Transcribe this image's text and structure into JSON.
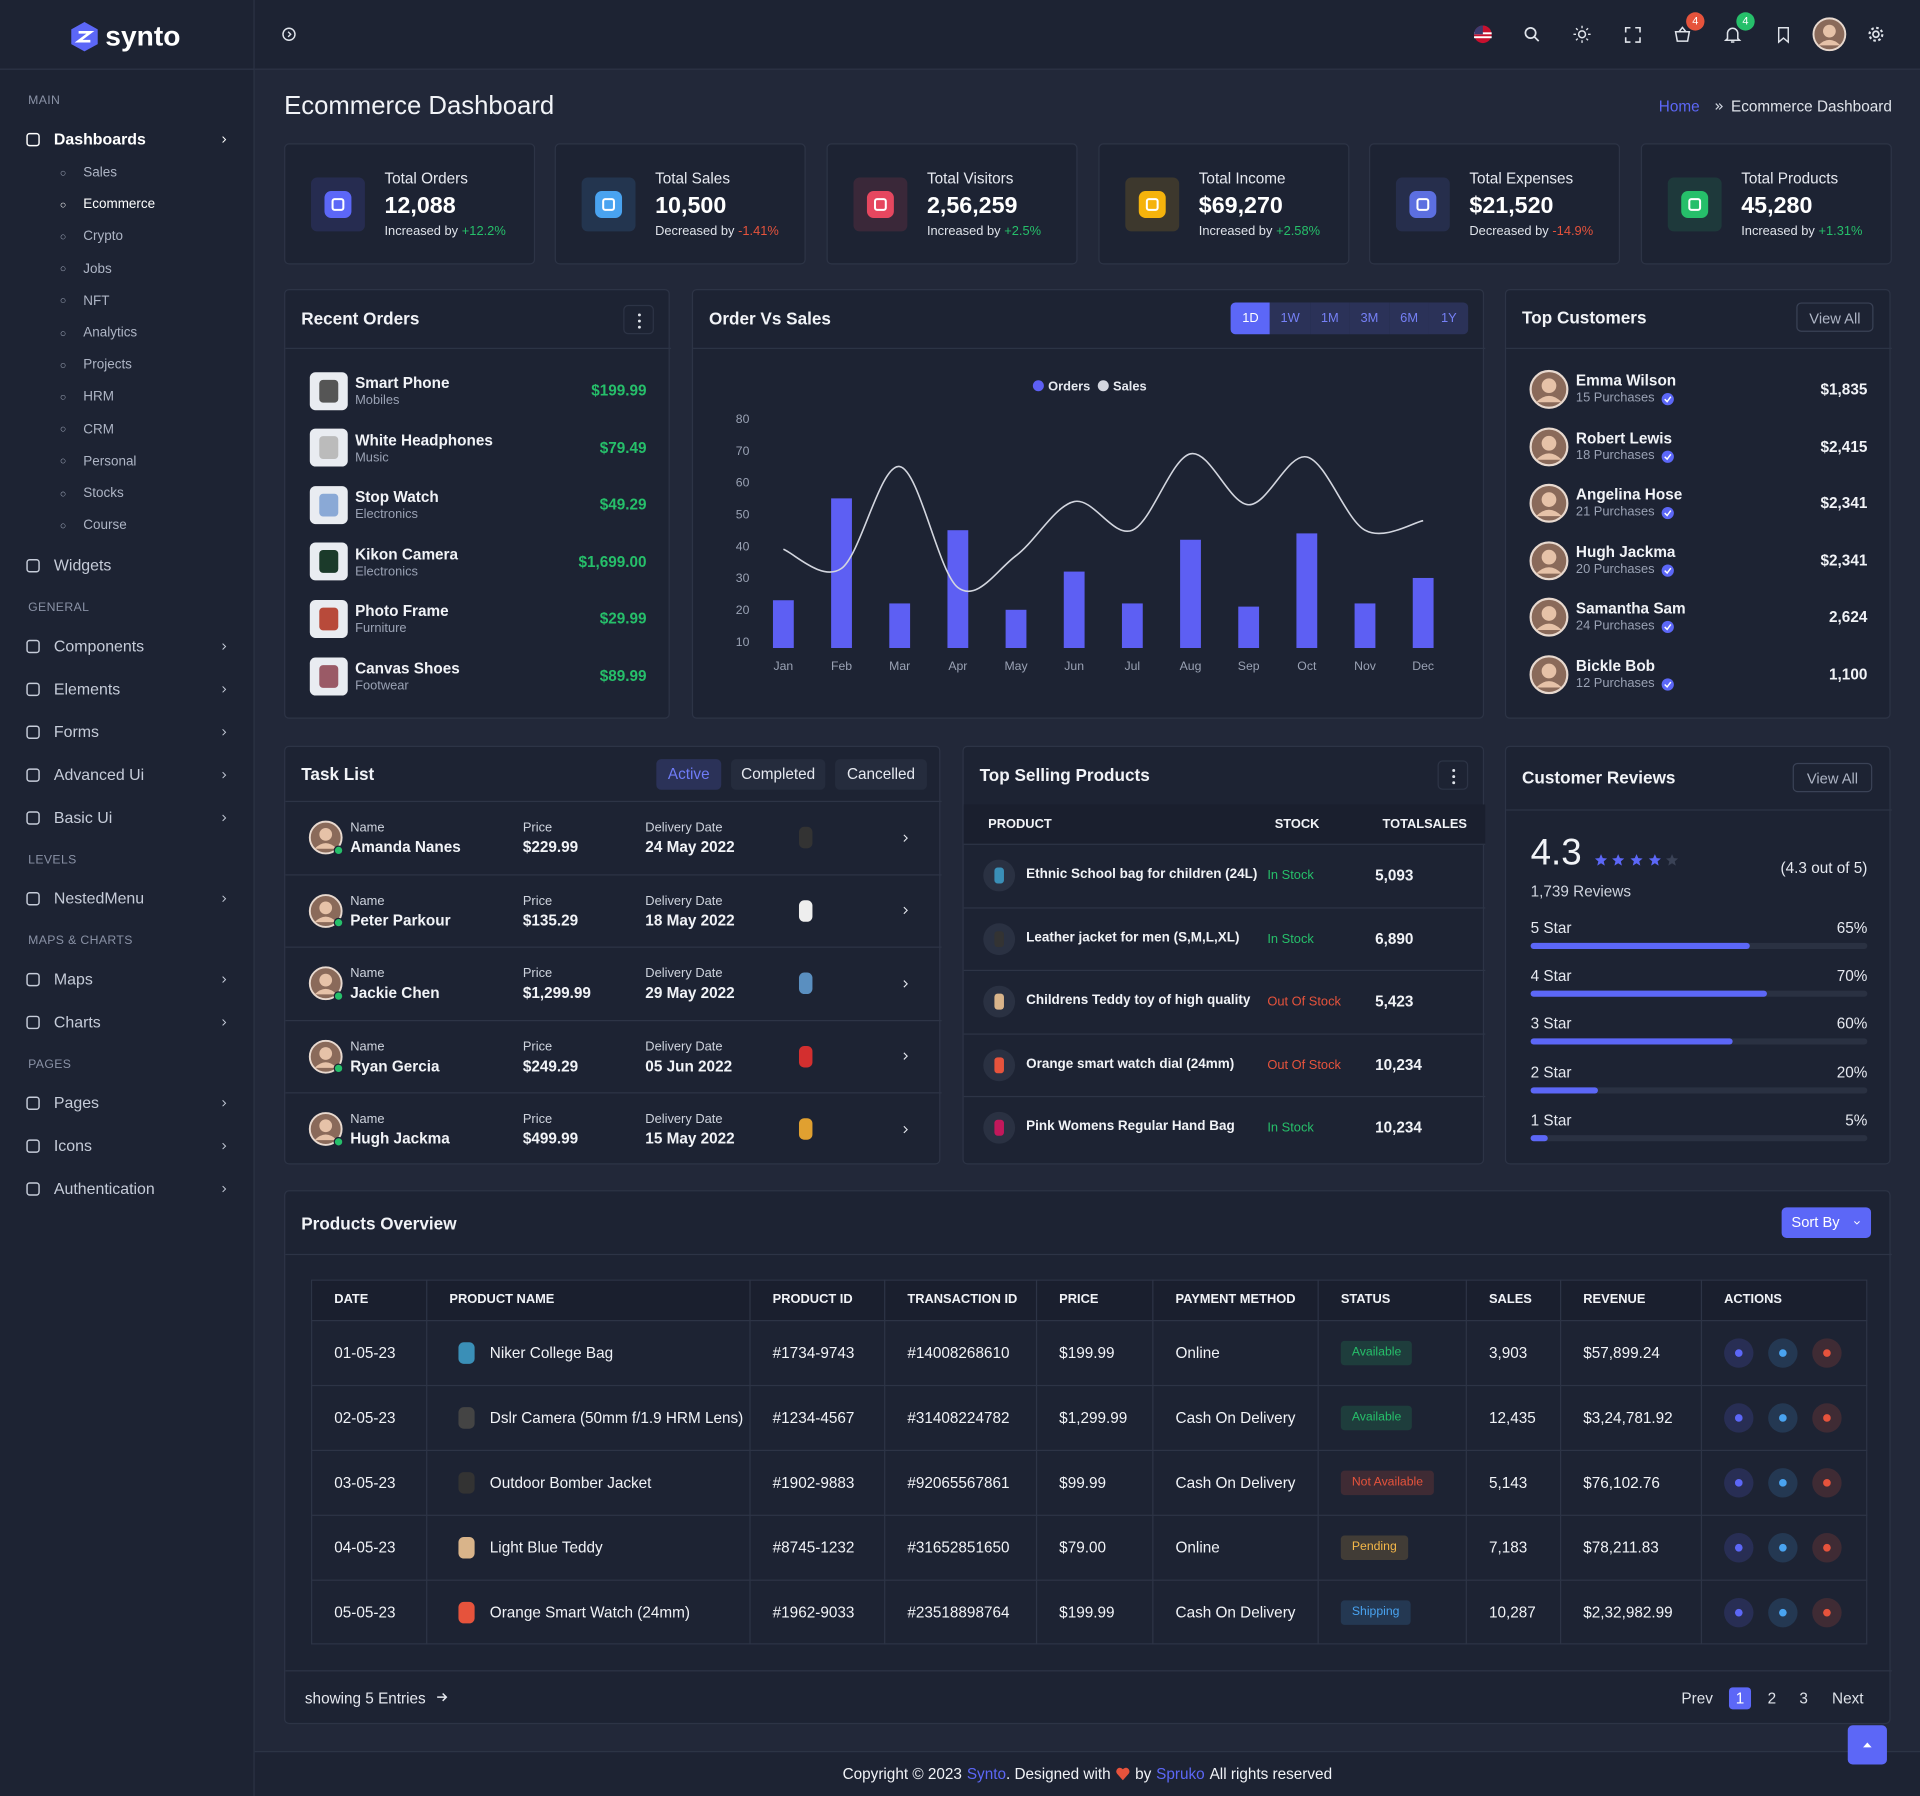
{
  "brand": "synto",
  "header": {
    "cart_count": 4,
    "notification_count": 4
  },
  "sidebar": {
    "sections": [
      {
        "title": "MAIN",
        "items": [
          {
            "label": "Dashboards",
            "children": [
              "Sales",
              "Ecommerce",
              "Crypto",
              "Jobs",
              "NFT",
              "Analytics",
              "Projects",
              "HRM",
              "CRM",
              "Personal",
              "Stocks",
              "Course"
            ]
          },
          {
            "label": "Widgets"
          }
        ]
      },
      {
        "title": "GENERAL",
        "items": [
          {
            "label": "Components"
          },
          {
            "label": "Elements"
          },
          {
            "label": "Forms"
          },
          {
            "label": "Advanced Ui"
          },
          {
            "label": "Basic Ui"
          }
        ]
      },
      {
        "title": "LEVELS",
        "items": [
          {
            "label": "NestedMenu"
          }
        ]
      },
      {
        "title": "MAPS & CHARTS",
        "items": [
          {
            "label": "Maps"
          },
          {
            "label": "Charts"
          }
        ]
      },
      {
        "title": "PAGES",
        "items": [
          {
            "label": "Pages"
          },
          {
            "label": "Icons"
          },
          {
            "label": "Authentication"
          }
        ]
      }
    ]
  },
  "page": {
    "title": "Ecommerce Dashboard",
    "breadcrumb": [
      "Home",
      "Ecommerce Dashboard"
    ]
  },
  "stats": [
    {
      "label": "Total Orders",
      "value": "12,088",
      "note": "Increased by",
      "change": "+12.2%",
      "color": "#26bf6a",
      "icon_color": "#5c67f7"
    },
    {
      "label": "Total Sales",
      "value": "10,500",
      "note": "Decreased by",
      "change": "-1.41%",
      "color": "#e6533c",
      "icon_color": "#49a3f0"
    },
    {
      "label": "Total Visitors",
      "value": "2,56,259",
      "note": "Increased by",
      "change": "+2.5%",
      "color": "#26bf6a",
      "icon_color": "#e6475f"
    },
    {
      "label": "Total Income",
      "value": "$69,270",
      "note": "Increased by",
      "change": "+2.58%",
      "color": "#26bf6a",
      "icon_color": "#f5b30c"
    },
    {
      "label": "Total Expenses",
      "value": "$21,520",
      "note": "Decreased by",
      "change": "-14.9%",
      "color": "#e6533c",
      "icon_color": "#5c6fe0"
    },
    {
      "label": "Total Products",
      "value": "45,280",
      "note": "Increased by",
      "change": "+1.31%",
      "color": "#26bf6a",
      "icon_color": "#26bf6a"
    }
  ],
  "recent_orders": {
    "title": "Recent Orders",
    "items": [
      {
        "name": "Smart Phone",
        "category": "Mobiles",
        "price": "$199.99"
      },
      {
        "name": "White Headphones",
        "category": "Music",
        "price": "$79.49"
      },
      {
        "name": "Stop Watch",
        "category": "Electronics",
        "price": "$49.29"
      },
      {
        "name": "Kikon Camera",
        "category": "Electronics",
        "price": "$1,699.00"
      },
      {
        "name": "Photo Frame",
        "category": "Furniture",
        "price": "$29.99"
      },
      {
        "name": "Canvas Shoes",
        "category": "Footwear",
        "price": "$89.99"
      }
    ]
  },
  "chart_data": {
    "type": "bar",
    "title": "Order Vs Sales",
    "ranges": [
      "1D",
      "1W",
      "1M",
      "3M",
      "6M",
      "1Y"
    ],
    "categories": [
      "Jan",
      "Feb",
      "Mar",
      "Apr",
      "May",
      "Jun",
      "Jul",
      "Aug",
      "Sep",
      "Oct",
      "Nov",
      "Dec"
    ],
    "series": [
      {
        "name": "Orders",
        "color": "#5d5ff3",
        "values": [
          23,
          55,
          22,
          45,
          20,
          32,
          22,
          42,
          21,
          44,
          22,
          30
        ]
      },
      {
        "name": "Sales",
        "type": "line",
        "color": "#d3d6df",
        "values": [
          39,
          33,
          65,
          27,
          37,
          54,
          45,
          69,
          53,
          68,
          45,
          48
        ]
      }
    ],
    "ylim": [
      8,
      80
    ],
    "yticks": [
      10,
      20,
      30,
      40,
      50,
      60,
      70,
      80
    ],
    "grid": false
  },
  "top_customers": {
    "title": "Top Customers",
    "action": "View All",
    "items": [
      {
        "name": "Emma Wilson",
        "purchases": "15 Purchases",
        "amount": "$1,835"
      },
      {
        "name": "Robert Lewis",
        "purchases": "18 Purchases",
        "amount": "$2,415"
      },
      {
        "name": "Angelina Hose",
        "purchases": "21 Purchases",
        "amount": "$2,341"
      },
      {
        "name": "Hugh Jackma",
        "purchases": "20 Purchases",
        "amount": "$2,341"
      },
      {
        "name": "Samantha Sam",
        "purchases": "24 Purchases",
        "amount": "2,624"
      },
      {
        "name": "Bickle Bob",
        "purchases": "12 Purchases",
        "amount": "1,100"
      }
    ]
  },
  "tasks": {
    "title": "Task List",
    "tabs": [
      "Active",
      "Completed",
      "Cancelled"
    ],
    "columns": [
      "Name",
      "Price",
      "Delivery Date"
    ],
    "rows": [
      [
        "Amanda Nanes",
        "$229.99",
        "24 May 2022"
      ],
      [
        "Peter Parkour",
        "$135.29",
        "18 May 2022"
      ],
      [
        "Jackie Chen",
        "$1,299.99",
        "29 May 2022"
      ],
      [
        "Ryan Gercia",
        "$249.29",
        "05 Jun 2022"
      ],
      [
        "Hugh Jackma",
        "$499.99",
        "15 May 2022"
      ]
    ]
  },
  "top_selling": {
    "title": "Top Selling Products",
    "columns": [
      "PRODUCT",
      "STOCK",
      "TOTALSALES"
    ],
    "rows": [
      {
        "product": "Ethnic School bag for children (24L)",
        "stock": "In Stock",
        "stock_color": "#26bf6a",
        "sales": "5,093"
      },
      {
        "product": "Leather jacket for men (S,M,L,XL)",
        "stock": "In Stock",
        "stock_color": "#26bf6a",
        "sales": "6,890"
      },
      {
        "product": "Childrens Teddy toy of high quality",
        "stock": "Out Of Stock",
        "stock_color": "#e6533c",
        "sales": "5,423"
      },
      {
        "product": "Orange smart watch dial (24mm)",
        "stock": "Out Of Stock",
        "stock_color": "#e6533c",
        "sales": "10,234"
      },
      {
        "product": "Pink Womens Regular Hand Bag",
        "stock": "In Stock",
        "stock_color": "#26bf6a",
        "sales": "10,234"
      }
    ]
  },
  "reviews": {
    "title": "Customer Reviews",
    "action": "View All",
    "rating": 4.3,
    "summary": "(4.3 out of 5)",
    "count": "1,739 Reviews",
    "bars": [
      {
        "label": "5 Star",
        "value": 65,
        "value_label": "65%"
      },
      {
        "label": "4 Star",
        "value": 70,
        "value_label": "70%"
      },
      {
        "label": "3 Star",
        "value": 60,
        "value_label": "60%"
      },
      {
        "label": "2 Star",
        "value": 20,
        "value_label": "20%"
      },
      {
        "label": "1 Star",
        "value": 5,
        "value_label": "5%"
      }
    ]
  },
  "products": {
    "title": "Products Overview",
    "sort": "Sort By",
    "columns": [
      "DATE",
      "PRODUCT NAME",
      "PRODUCT ID",
      "TRANSACTION ID",
      "PRICE",
      "PAYMENT METHOD",
      "STATUS",
      "SALES",
      "REVENUE",
      "ACTIONS"
    ],
    "rows": [
      {
        "date": "01-05-23",
        "name": "Niker College Bag",
        "id": "#1734-9743",
        "transaction": "#14008268610",
        "price": "$199.99",
        "payment": "Online",
        "status": "Available",
        "status_color": "#26bf6a",
        "sales": "3,903",
        "revenue": "$57,899.24"
      },
      {
        "date": "02-05-23",
        "name": "Dslr Camera (50mm f/1.9 HRM Lens)",
        "id": "#1234-4567",
        "transaction": "#31408224782",
        "price": "$1,299.99",
        "payment": "Cash On Delivery",
        "status": "Available",
        "status_color": "#26bf6a",
        "sales": "12,435",
        "revenue": "$3,24,781.92"
      },
      {
        "date": "03-05-23",
        "name": "Outdoor Bomber Jacket",
        "id": "#1902-9883",
        "transaction": "#92065567861",
        "price": "$99.99",
        "payment": "Cash On Delivery",
        "status": "Not Available",
        "status_color": "#e6533c",
        "sales": "5,143",
        "revenue": "$76,102.76"
      },
      {
        "date": "04-05-23",
        "name": "Light Blue Teddy",
        "id": "#8745-1232",
        "transaction": "#31652851650",
        "price": "$79.00",
        "payment": "Online",
        "status": "Pending",
        "status_color": "#f5b849",
        "sales": "7,183",
        "revenue": "$78,211.83"
      },
      {
        "date": "05-05-23",
        "name": "Orange Smart Watch (24mm)",
        "id": "#1962-9033",
        "transaction": "#23518898764",
        "price": "$199.99",
        "payment": "Cash On Delivery",
        "status": "Shipping",
        "status_color": "#49a3f0",
        "sales": "10,287",
        "revenue": "$2,32,982.99"
      }
    ],
    "entries": "showing 5 Entries",
    "pagination": [
      "Prev",
      "1",
      "2",
      "3",
      "Next"
    ]
  },
  "footer": {
    "parts": [
      "Copyright © 2023",
      "Synto",
      ". Designed with",
      "by",
      "Spruko",
      "All rights reserved"
    ]
  }
}
